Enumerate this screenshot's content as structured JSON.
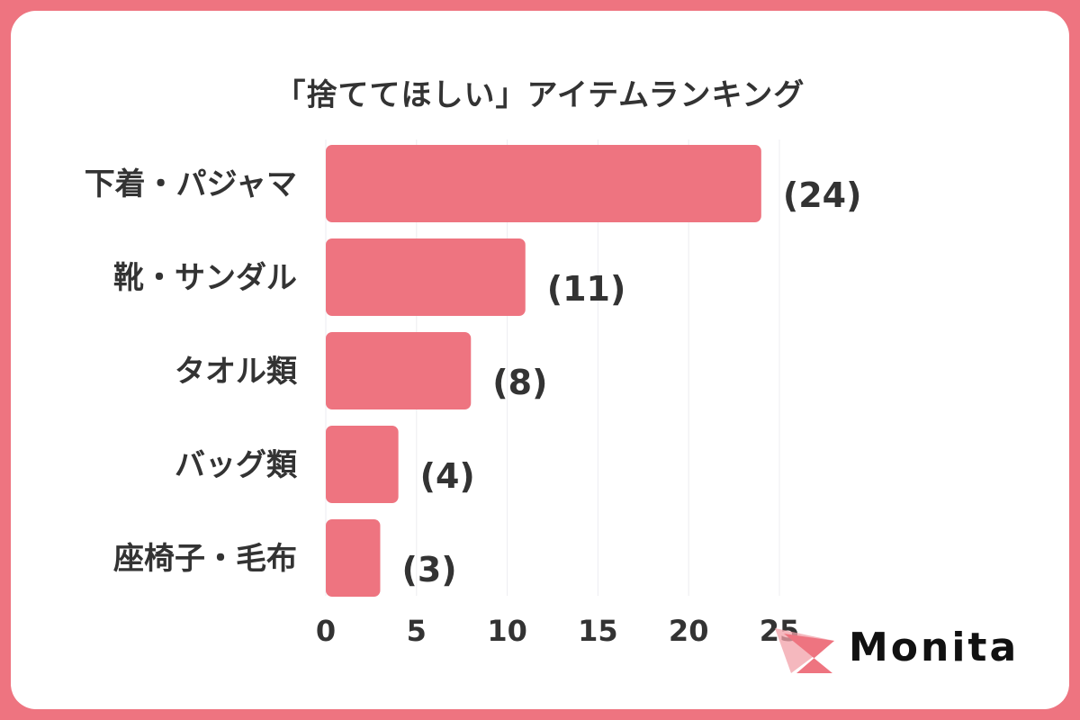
{
  "chart_data": {
    "type": "bar",
    "orientation": "horizontal",
    "title": "「捨ててほしい」アイテムランキング",
    "categories": [
      "下着・パジャマ",
      "靴・サンダル",
      "タオル類",
      "バッグ類",
      "座椅子・毛布"
    ],
    "values": [
      24,
      11,
      8,
      4,
      3
    ],
    "data_labels": [
      "(24)",
      "(11)",
      "(8)",
      "(4)",
      "(3)"
    ],
    "xlim": [
      0,
      25
    ],
    "xticks": [
      "0",
      "5",
      "10",
      "15",
      "20",
      "25"
    ],
    "grid": true,
    "bar_color": "#ee7480"
  },
  "brand": {
    "name": "Monita",
    "accent": "#ee7480"
  },
  "colors": {
    "frame": "#ee7480",
    "text": "#333333"
  }
}
